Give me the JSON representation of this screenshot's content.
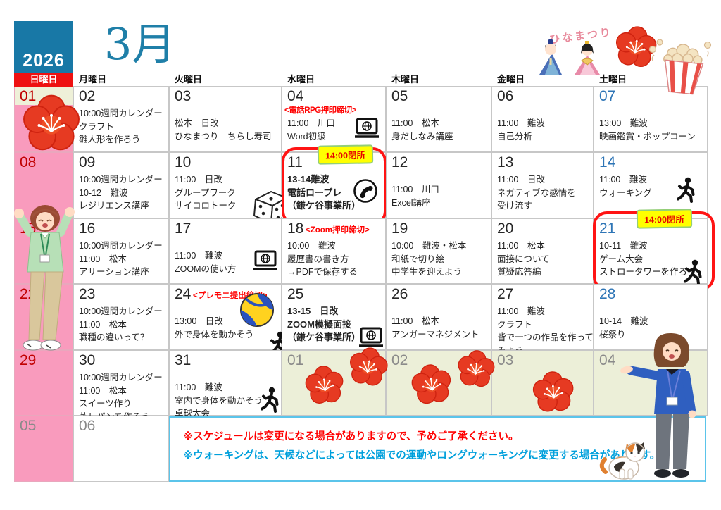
{
  "header": {
    "year": "2026",
    "month_title": "3月"
  },
  "day_headers": [
    {
      "key": "sunday",
      "label": "日曜日"
    },
    {
      "key": "monday",
      "label": "月曜日"
    },
    {
      "key": "tuesday",
      "label": "火曜日"
    },
    {
      "key": "wednesday",
      "label": "水曜日"
    },
    {
      "key": "thursday",
      "label": "木曜日"
    },
    {
      "key": "friday",
      "label": "金曜日"
    },
    {
      "key": "saturday",
      "label": "土曜日"
    }
  ],
  "cells": [
    {
      "num": "01",
      "col": 0,
      "row": 0,
      "style": "sun",
      "bg": "pink",
      "strip": true
    },
    {
      "num": "02",
      "col": 1,
      "row": 0,
      "lines": [
        "10:00週間カレンダー",
        "クラフト",
        "雛人形を作ろう"
      ]
    },
    {
      "num": "03",
      "col": 2,
      "row": 0,
      "gap": true,
      "lines": [
        "松本　日改",
        "ひなまつり　ちらし寿司"
      ]
    },
    {
      "num": "04",
      "col": 3,
      "row": 0,
      "tag": {
        "text": "<電話RPG押印締切>",
        "mode": "line"
      },
      "lines": [
        "11:00　川口",
        "Word初級"
      ],
      "icons": [
        {
          "name": "laptop-globe-icon",
          "slot": "a"
        }
      ]
    },
    {
      "num": "05",
      "col": 4,
      "row": 0,
      "gap": true,
      "lines": [
        "11:00　松本",
        "身だしなみ講座"
      ]
    },
    {
      "num": "06",
      "col": 5,
      "row": 0,
      "gap": true,
      "lines": [
        "11:00　難波",
        "自己分析"
      ]
    },
    {
      "num": "07",
      "col": 6,
      "row": 0,
      "style": "sat",
      "gap": true,
      "lines": [
        "13:00　難波",
        "映画鑑賞・ポップコーン"
      ]
    },
    {
      "num": "08",
      "col": 0,
      "row": 1,
      "style": "sun",
      "bg": "pink"
    },
    {
      "num": "09",
      "col": 1,
      "row": 1,
      "lines": [
        "10:00週間カレンダー",
        "10-12　難波",
        "レジリエンス講座"
      ]
    },
    {
      "num": "10",
      "col": 2,
      "row": 1,
      "lines": [
        "11:00　日改",
        "グループワーク",
        "サイコロトーク"
      ],
      "icons": [
        {
          "name": "dice-icon",
          "slot": "i"
        }
      ]
    },
    {
      "num": "11",
      "col": 3,
      "row": 1,
      "bold": true,
      "redbox": "a",
      "badge": {
        "text": "14:00閉所",
        "pos": "a"
      },
      "lines": [
        "13-14難波",
        "電話ロープレ",
        "（鎌ケ谷事業所）"
      ],
      "icons": [
        {
          "name": "phone-icon",
          "slot": "b"
        }
      ]
    },
    {
      "num": "12",
      "col": 4,
      "row": 1,
      "gap": true,
      "lines": [
        "11:00　川口",
        "Excel講座"
      ]
    },
    {
      "num": "13",
      "col": 5,
      "row": 1,
      "lines": [
        "11:00　日改",
        "ネガティブな感情を",
        "受け流す"
      ]
    },
    {
      "num": "14",
      "col": 6,
      "row": 1,
      "style": "sat",
      "lines": [
        "11:00　難波",
        "ウォーキング"
      ],
      "icons": [
        {
          "name": "walker-icon",
          "slot": "e"
        }
      ]
    },
    {
      "num": "15",
      "col": 0,
      "row": 2,
      "style": "sun",
      "bg": "pink"
    },
    {
      "num": "16",
      "col": 1,
      "row": 2,
      "lines": [
        "10:00週間カレンダー",
        "11:00　松本",
        "アサーション講座"
      ]
    },
    {
      "num": "17",
      "col": 2,
      "row": 2,
      "gap": true,
      "lines": [
        "11:00　難波",
        "ZOOMの使い方"
      ],
      "icons": [
        {
          "name": "laptop-globe-icon",
          "slot": "c"
        }
      ]
    },
    {
      "num": "18",
      "col": 3,
      "row": 2,
      "tag": {
        "text": "<Zoom押印締切>",
        "mode": "inline"
      },
      "lines": [
        "10:00　難波",
        "履歴書の書き方",
        "→PDFで保存する"
      ]
    },
    {
      "num": "19",
      "col": 4,
      "row": 2,
      "lines": [
        "10:00　難波・松本",
        "和紙で切り絵",
        "中学生を迎えよう"
      ]
    },
    {
      "num": "20",
      "col": 5,
      "row": 2,
      "lines": [
        "11:00　松本",
        "面接について",
        "質疑応答編"
      ]
    },
    {
      "num": "21",
      "col": 6,
      "row": 2,
      "style": "sat",
      "redbox": "b",
      "badge": {
        "text": "14:00閉所",
        "pos": "b"
      },
      "lines": [
        "10-11　難波",
        "ゲーム大会",
        "ストロータワーを作ろう"
      ],
      "icons": [
        {
          "name": "walker-icon",
          "slot": "f"
        }
      ]
    },
    {
      "num": "22",
      "col": 0,
      "row": 3,
      "style": "sun",
      "bg": "pink"
    },
    {
      "num": "23",
      "col": 1,
      "row": 3,
      "lines": [
        "10:00週間カレンダー",
        "11:00　松本",
        "職種の違いって？"
      ]
    },
    {
      "num": "24",
      "col": 2,
      "row": 3,
      "tag": {
        "text": "<プレモニ提出締切>",
        "mode": "inline"
      },
      "gap": true,
      "lines": [
        "13:00　日改",
        "外で身体を動かそう"
      ],
      "icons": [
        {
          "name": "volleyball-icon",
          "slot": "h"
        },
        {
          "name": "walker-icon",
          "slot": "g"
        }
      ]
    },
    {
      "num": "25",
      "col": 3,
      "row": 3,
      "bold": true,
      "lines": [
        "13-15　日改",
        "ZOOM模擬面接",
        "（鎌ケ谷事業所）"
      ],
      "icons": [
        {
          "name": "laptop-globe-icon",
          "slot": "d"
        }
      ]
    },
    {
      "num": "26",
      "col": 4,
      "row": 3,
      "gap": true,
      "lines": [
        "11:00　松本",
        "アンガーマネジメント"
      ]
    },
    {
      "num": "27",
      "col": 5,
      "row": 3,
      "lines": [
        "11:00　難波",
        "クラフト",
        "皆で一つの作品を作って",
        "みよう"
      ]
    },
    {
      "num": "28",
      "col": 6,
      "row": 3,
      "style": "sat",
      "gap": true,
      "lines": [
        "10-14　難波",
        "桜祭り"
      ]
    },
    {
      "num": "29",
      "col": 0,
      "row": 4,
      "style": "sun",
      "bg": "pink"
    },
    {
      "num": "30",
      "col": 1,
      "row": 4,
      "lines": [
        "10:00週間カレンダー",
        "11:00　松本",
        "スイーツ作り",
        "蒸しパンを作ろう"
      ]
    },
    {
      "num": "31",
      "col": 2,
      "row": 4,
      "gap": true,
      "lines": [
        "11:00　難波",
        "室内で身体を動かそう",
        "卓球大会"
      ],
      "icons": [
        {
          "name": "walker-icon",
          "slot": "j"
        }
      ]
    },
    {
      "num": "01",
      "col": 3,
      "row": 4,
      "style": "next",
      "bg": "beige"
    },
    {
      "num": "02",
      "col": 4,
      "row": 4,
      "style": "next",
      "bg": "beige"
    },
    {
      "num": "03",
      "col": 5,
      "row": 4,
      "style": "next",
      "bg": "beige"
    },
    {
      "num": "04",
      "col": 6,
      "row": 4,
      "style": "next",
      "bg": "beige"
    },
    {
      "num": "05",
      "col": 0,
      "row": 5,
      "style": "next",
      "bg": "pink"
    },
    {
      "num": "06",
      "col": 1,
      "row": 5,
      "style": "next"
    }
  ],
  "notice": {
    "line1": "※スケジュールは変更になる場合がありますので、予めご了承ください。",
    "line2": "※ウォーキングは、天候などによっては公園での運動やロングウォーキングに変更する場合があります。"
  },
  "decorations": {
    "hina_script_text": "ひなまつり"
  },
  "icons": {
    "laptop-globe-icon": "laptop with web globe on screen",
    "phone-icon": "telephone receiver in a circle",
    "walker-icon": "walking person pictogram",
    "dice-icon": "die with pips",
    "volleyball-icon": "volleyball",
    "plum-blossom-icon": "red plum blossom",
    "popcorn-icon": "striped popcorn bucket",
    "hina-dolls-icon": "hina matsuri emperor and empress dolls",
    "cat-icon": "calico cat",
    "cheering-woman-illustration": "woman in green polo cheering",
    "guide-woman-illustration": "woman in blue sweater presenting"
  },
  "colors": {
    "header_teal": "#1878A6",
    "title_teal": "#1F7FA8",
    "sunday_header_red": "#EE1111",
    "sunday_pink": "#F99BBD",
    "sunday_number_red": "#C00000",
    "saturday_blue": "#2E75B6",
    "next_month_gray": "#8A8A8A",
    "next_month_beige": "#ECEFD8",
    "deadline_red": "#FF0000",
    "badge_yellow": "#FFFF00",
    "badge_border_green": "#93CE77",
    "highlight_box_red": "#FF1414",
    "notice_border_blue": "#5BC4EA",
    "notice_text_blue": "#00A0DC"
  }
}
